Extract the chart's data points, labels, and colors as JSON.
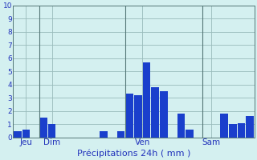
{
  "title": "",
  "xlabel": "Précipitations 24h ( mm )",
  "background_color": "#d4f0f0",
  "bar_color": "#1a3fcc",
  "grid_color": "#99bbbb",
  "vline_color": "#557777",
  "ylim": [
    0,
    10
  ],
  "yticks": [
    0,
    1,
    2,
    3,
    4,
    5,
    6,
    7,
    8,
    9,
    10
  ],
  "bar_values": [
    0.5,
    0.6,
    0.0,
    1.5,
    1.0,
    0.0,
    0.0,
    0.0,
    0.0,
    0.0,
    0.5,
    0.0,
    0.5,
    3.3,
    3.2,
    5.7,
    3.8,
    3.5,
    0.0,
    1.8,
    0.6,
    0.0,
    0.0,
    0.0,
    1.8,
    1.0,
    1.1,
    1.6
  ],
  "day_labels": [
    "Jeu",
    "Dim",
    "Ven",
    "Sam"
  ],
  "day_positions": [
    1.0,
    4.0,
    14.5,
    22.5
  ],
  "vline_positions": [
    2.5,
    12.5,
    21.5
  ],
  "tick_label_color": "#2233bb",
  "xlabel_color": "#2233bb",
  "ytick_fontsize": 6.5,
  "xtick_fontsize": 7.5,
  "xlabel_fontsize": 8.0
}
